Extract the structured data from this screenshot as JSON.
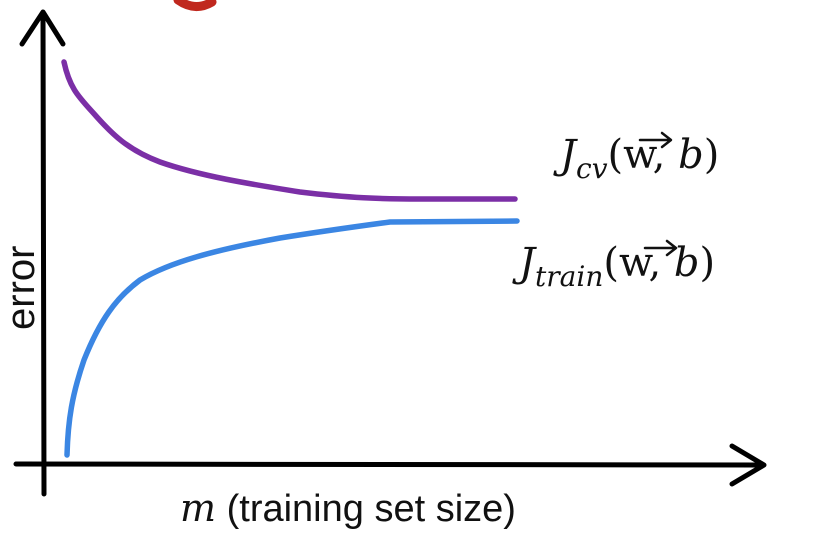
{
  "diagram": {
    "axes": {
      "y_label": "error",
      "x_label_var": "m",
      "x_label_text": " (training set size)"
    },
    "curves": [
      {
        "id": "cv",
        "label_main": "J",
        "label_sub": "cv",
        "label_args_open": "(",
        "label_vector": "w",
        "label_comma": ", ",
        "label_b": "b",
        "label_args_close": ")",
        "color": "#7B2FA6"
      },
      {
        "id": "train",
        "label_main": "J",
        "label_sub": "train",
        "label_args_open": "(",
        "label_vector": "w",
        "label_comma": ", ",
        "label_b": "b",
        "label_args_close": ")",
        "color": "#3B86E3"
      }
    ],
    "top_mark_color": "#C0281E"
  }
}
